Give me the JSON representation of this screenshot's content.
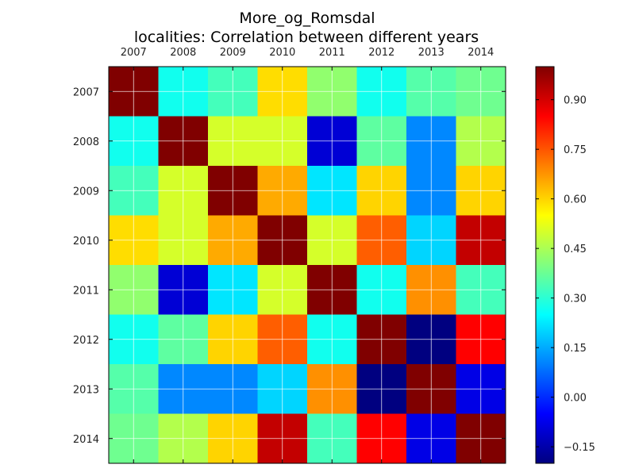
{
  "chart_data": {
    "type": "heatmap",
    "title": [
      "More_og_Romsdal",
      "localities: Correlation between different years"
    ],
    "x_labels": [
      "2007",
      "2008",
      "2009",
      "2010",
      "2011",
      "2012",
      "2013",
      "2014"
    ],
    "y_labels": [
      "2007",
      "2008",
      "2009",
      "2010",
      "2011",
      "2012",
      "2013",
      "2014"
    ],
    "values": [
      [
        1.0,
        0.27,
        0.33,
        0.59,
        0.42,
        0.27,
        0.35,
        0.38
      ],
      [
        0.27,
        1.0,
        0.5,
        0.5,
        -0.1,
        0.36,
        0.11,
        0.46
      ],
      [
        0.33,
        0.5,
        1.0,
        0.65,
        0.22,
        0.6,
        0.11,
        0.6
      ],
      [
        0.59,
        0.5,
        0.65,
        1.0,
        0.5,
        0.74,
        0.2,
        0.92
      ],
      [
        0.42,
        -0.1,
        0.22,
        0.5,
        1.0,
        0.27,
        0.68,
        0.33
      ],
      [
        0.27,
        0.36,
        0.6,
        0.74,
        0.27,
        1.0,
        -0.2,
        0.85
      ],
      [
        0.35,
        0.11,
        0.11,
        0.2,
        0.68,
        -0.2,
        1.0,
        -0.08
      ],
      [
        0.38,
        0.46,
        0.6,
        0.92,
        0.33,
        0.85,
        -0.08,
        1.0
      ]
    ],
    "colorbar": {
      "colormap": "jet",
      "range": [
        -0.2,
        1.0
      ],
      "ticks": [
        -0.15,
        0.0,
        0.15,
        0.3,
        0.45,
        0.6,
        0.75,
        0.9
      ],
      "tick_labels": [
        "−0.15",
        "0.00",
        "0.15",
        "0.30",
        "0.45",
        "0.60",
        "0.75",
        "0.90"
      ]
    },
    "grid": true
  }
}
